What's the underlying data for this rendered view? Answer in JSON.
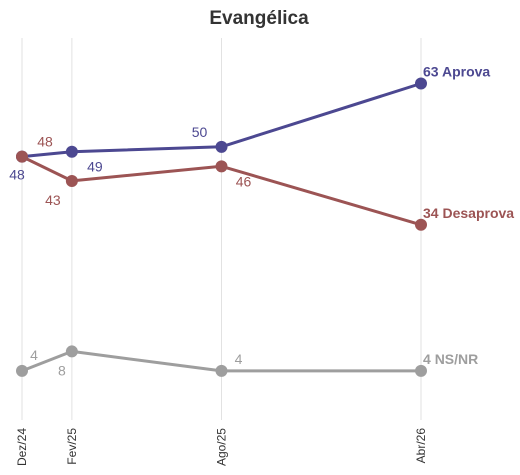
{
  "chart_data": {
    "type": "line",
    "title": "Evangélica",
    "categories": [
      "Dez/24",
      "Fev/25",
      "Ago/25",
      "Abr/26"
    ],
    "x_positions": [
      "2024-12",
      "2025-02",
      "2025-08",
      "2026-04"
    ],
    "grid": "vertical",
    "legend": "none",
    "series": [
      {
        "name": "Aprova",
        "values": [
          48,
          49,
          50,
          63
        ],
        "color": "#4c4891"
      },
      {
        "name": "Desaprova",
        "values": [
          48,
          43,
          46,
          34
        ],
        "color": "#9c5454"
      },
      {
        "name": "NS/NR",
        "values": [
          4,
          8,
          4,
          4
        ],
        "color": "#9e9e9e"
      }
    ]
  }
}
